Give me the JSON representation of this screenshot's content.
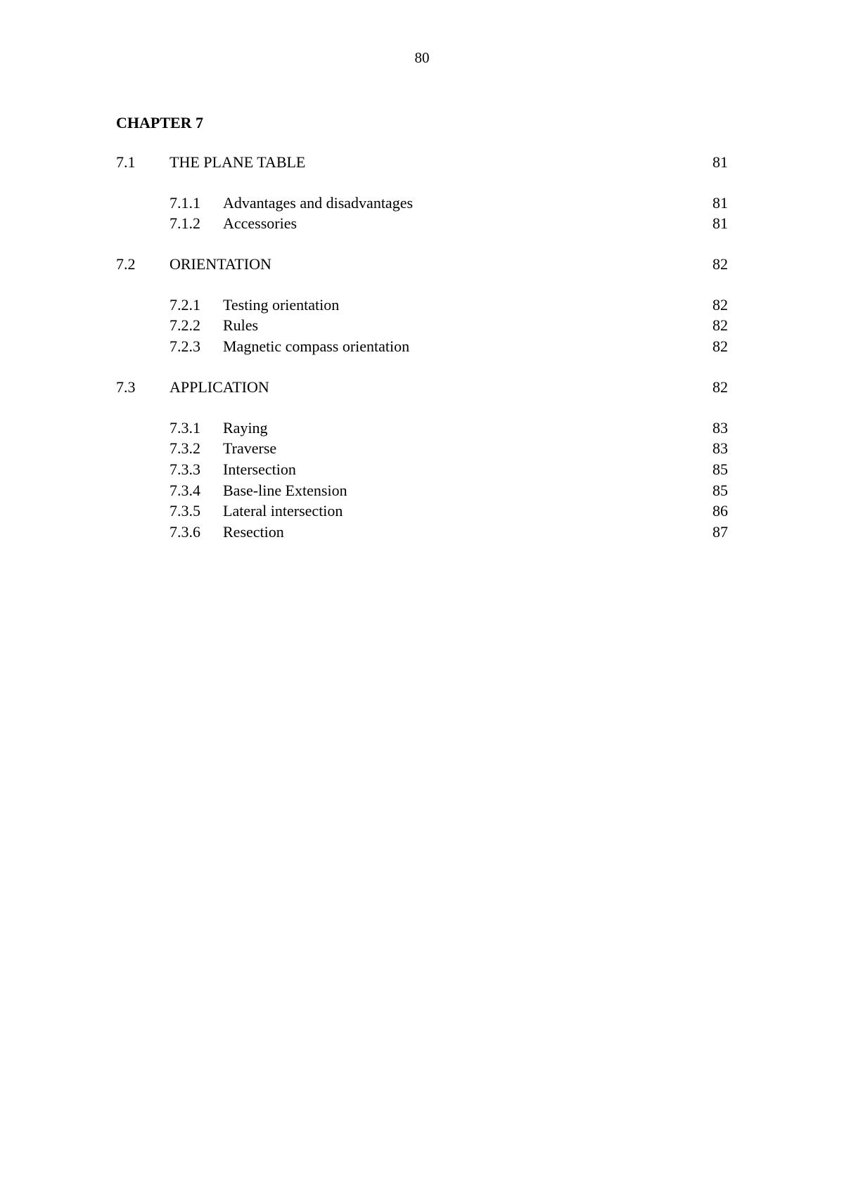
{
  "page_number": "80",
  "chapter_title": "CHAPTER 7",
  "sections": [
    {
      "num": "7.1",
      "title": "THE PLANE TABLE",
      "page": "81",
      "subs": [
        {
          "num": "7.1.1",
          "title": "Advantages and disadvantages",
          "page": "81"
        },
        {
          "num": "7.1.2",
          "title": "Accessories",
          "page": "81"
        }
      ]
    },
    {
      "num": "7.2",
      "title": "ORIENTATION",
      "page": "82",
      "subs": [
        {
          "num": "7.2.1",
          "title": "Testing orientation",
          "page": "82"
        },
        {
          "num": "7.2.2",
          "title": "Rules",
          "page": "82"
        },
        {
          "num": "7.2.3",
          "title": "Magnetic compass orientation",
          "page": "82"
        }
      ]
    },
    {
      "num": "7.3",
      "title": "APPLICATION",
      "page": "82",
      "subs": [
        {
          "num": "7.3.1",
          "title": "Raying",
          "page": "83"
        },
        {
          "num": "7.3.2",
          "title": "Traverse",
          "page": "83"
        },
        {
          "num": "7.3.3",
          "title": "Intersection",
          "page": "85"
        },
        {
          "num": "7.3.4",
          "title": "Base-line Extension",
          "page": "85"
        },
        {
          "num": "7.3.5",
          "title": "Lateral intersection",
          "page": "86"
        },
        {
          "num": "7.3.6",
          "title": "Resection",
          "page": "87"
        }
      ]
    }
  ]
}
